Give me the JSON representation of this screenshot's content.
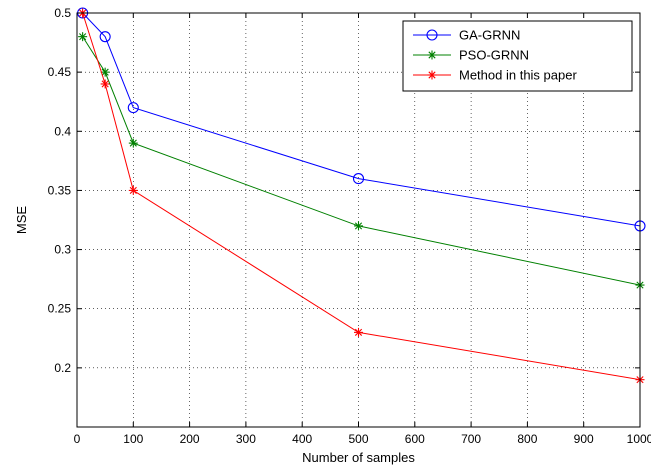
{
  "chart_data": {
    "type": "line",
    "title": "",
    "xlabel": "Number of samples",
    "ylabel": "MSE",
    "xlim": [
      0,
      1000
    ],
    "ylim": [
      0.15,
      0.5
    ],
    "grid": true,
    "legend_position": "top-right",
    "x_ticks": [
      "0",
      "100",
      "200",
      "300",
      "400",
      "500",
      "600",
      "700",
      "800",
      "900",
      "1000"
    ],
    "y_ticks": [
      "0.2",
      "0.25",
      "0.3",
      "0.35",
      "0.4",
      "0.45",
      "0.5"
    ],
    "x": [
      10,
      50,
      100,
      500,
      1000
    ],
    "series": [
      {
        "name": "GA-GRNN",
        "color": "#0000ff",
        "marker": "circle",
        "values": [
          0.5,
          0.48,
          0.42,
          0.36,
          0.32
        ]
      },
      {
        "name": "PSO-GRNN",
        "color": "#008000",
        "marker": "star",
        "values": [
          0.48,
          0.45,
          0.39,
          0.32,
          0.27
        ]
      },
      {
        "name": "Method in this paper",
        "color": "#ff0000",
        "marker": "star",
        "values": [
          0.5,
          0.44,
          0.35,
          0.23,
          0.19
        ]
      }
    ]
  }
}
